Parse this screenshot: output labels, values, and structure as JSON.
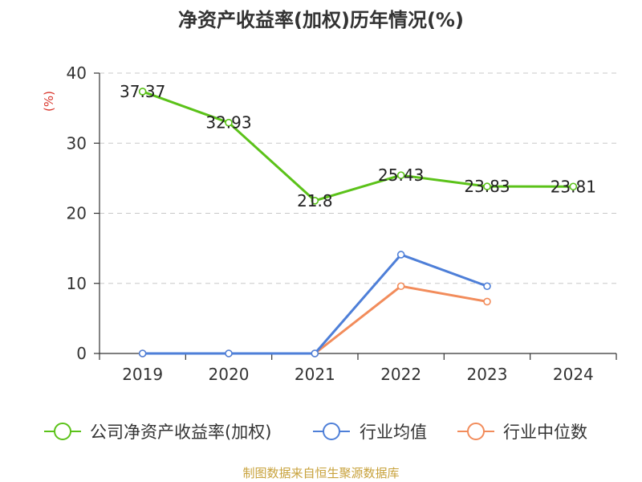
{
  "chart_data": {
    "type": "line",
    "title": "净资产收益率(加权)历年情况(%)",
    "ylabel": "(%)",
    "xlabel": "",
    "categories": [
      "2019",
      "2020",
      "2021",
      "2022",
      "2023",
      "2024"
    ],
    "ylim": [
      0,
      40
    ],
    "yticks": [
      0,
      10,
      20,
      30,
      40
    ],
    "grid": true,
    "legend_position": "bottom",
    "series": [
      {
        "name": "公司净资产收益率(加权)",
        "color": "#5bc219",
        "values": [
          37.37,
          32.93,
          21.8,
          25.43,
          23.83,
          23.81
        ],
        "labels": [
          "37.37",
          "32.93",
          "21.8",
          "25.43",
          "23.83",
          "23.81"
        ]
      },
      {
        "name": "行业均值",
        "color": "#4e7fd8",
        "values": [
          0,
          0,
          0,
          14.1,
          9.6,
          null
        ]
      },
      {
        "name": "行业中位数",
        "color": "#f28c5b",
        "values": [
          0,
          0,
          0,
          9.6,
          7.4,
          null
        ]
      }
    ],
    "source": "制图数据来自恒生聚源数据库"
  }
}
